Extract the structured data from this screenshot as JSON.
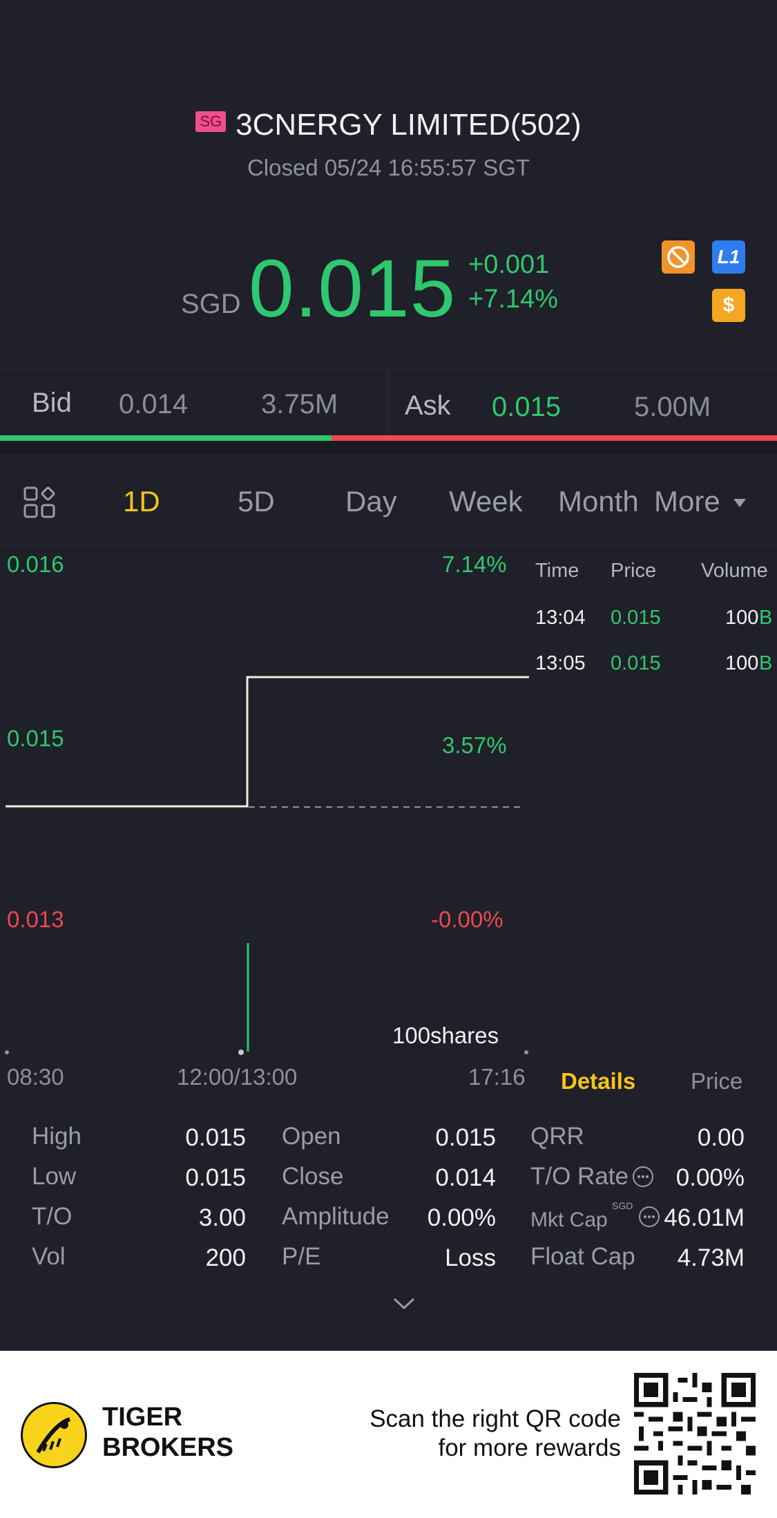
{
  "header": {
    "market_badge": "SG",
    "title": "3CNERGY LIMITED(502)",
    "status": "Closed 05/24 16:55:57 SGT"
  },
  "quote": {
    "currency": "SGD",
    "price": "0.015",
    "change": "+0.001",
    "change_pct": "+7.14%",
    "icons": [
      "no-short-icon",
      "level1-icon",
      "dollar-icon"
    ],
    "level_badge": "L1",
    "dollar_badge": "$"
  },
  "bidask": {
    "bid_label": "Bid",
    "bid_price": "0.014",
    "bid_size": "3.75M",
    "ask_label": "Ask",
    "ask_price": "0.015",
    "ask_size": "5.00M",
    "bid_ratio": 0.4267
  },
  "tabs": {
    "items": [
      "1D",
      "5D",
      "Day",
      "Week",
      "Month",
      "More"
    ],
    "active": "1D"
  },
  "chart": {
    "y_left": [
      "0.016",
      "0.015",
      "0.013"
    ],
    "y_right": [
      "7.14%",
      "3.57%",
      "-0.00%"
    ],
    "x_labels": [
      "08:30",
      "12:00/13:00",
      "17:16"
    ],
    "volume_label": "100shares"
  },
  "trades": {
    "headers": [
      "Time",
      "Price",
      "Volume"
    ],
    "rows": [
      {
        "time": "13:04",
        "price": "0.015",
        "volume": "100",
        "side": "B"
      },
      {
        "time": "13:05",
        "price": "0.015",
        "volume": "100",
        "side": "B"
      }
    ]
  },
  "details_tabs": {
    "active": "Details",
    "other": "Price"
  },
  "stats": {
    "col1": [
      {
        "label": "High",
        "value": "0.015"
      },
      {
        "label": "Low",
        "value": "0.015"
      },
      {
        "label": "T/O",
        "value": "3.00"
      },
      {
        "label": "Vol",
        "value": "200"
      }
    ],
    "col2": [
      {
        "label": "Open",
        "value": "0.015"
      },
      {
        "label": "Close",
        "value": "0.014"
      },
      {
        "label": "Amplitude",
        "value": "0.00%"
      },
      {
        "label": "P/E",
        "value": "Loss"
      }
    ],
    "col3": [
      {
        "label": "QRR",
        "value": "0.00"
      },
      {
        "label": "T/O Rate",
        "value": "0.00%"
      },
      {
        "label": "Mkt Cap",
        "value": "46.01M",
        "sup": "SGD"
      },
      {
        "label": "Float Cap",
        "value": "4.73M"
      }
    ]
  },
  "footer": {
    "brand_line1": "TIGER",
    "brand_line2": "BROKERS",
    "scan_line1": "Scan the right QR code",
    "scan_line2": "for more rewards"
  },
  "colors": {
    "up": "#2fc86e",
    "down": "#f04752",
    "accent": "#f5c518",
    "background": "#1f2029"
  }
}
